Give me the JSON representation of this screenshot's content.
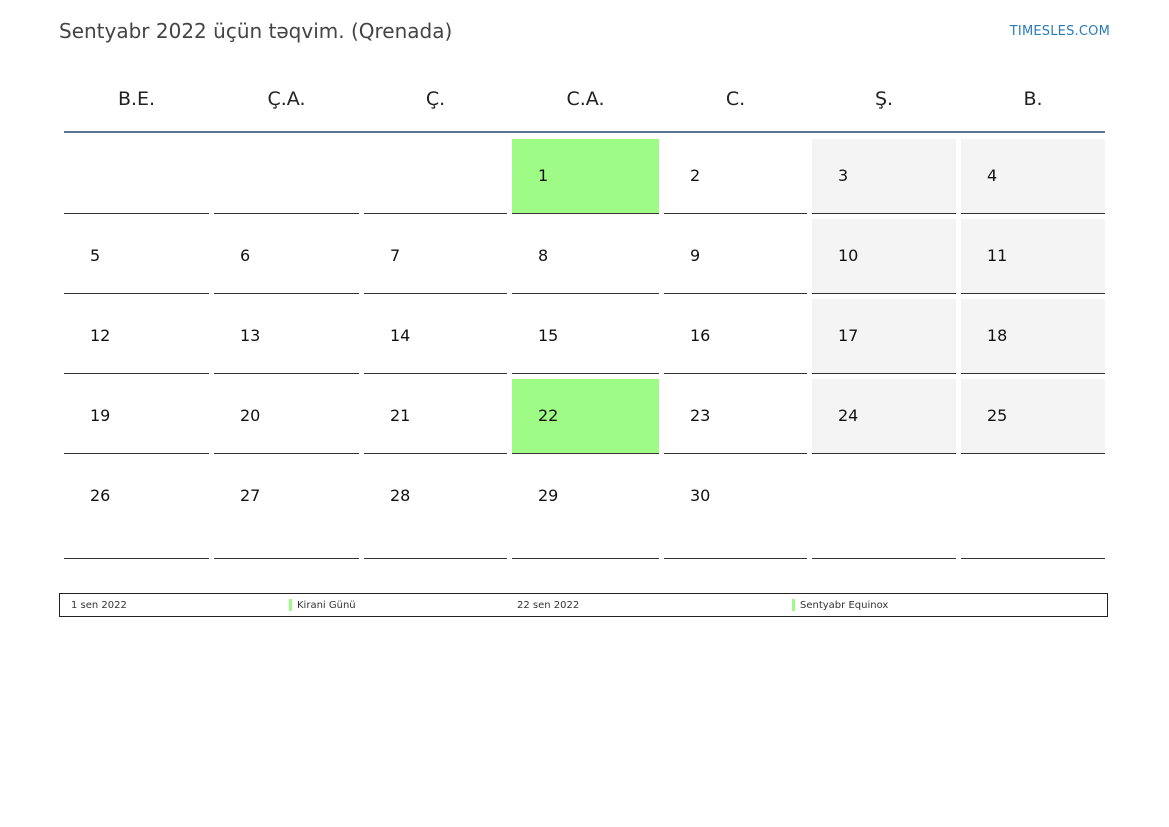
{
  "header": {
    "title": "Sentyabr 2022 üçün təqvim. (Qrenada)",
    "brand": "TIMESLES.COM"
  },
  "weekdays": [
    "B.E.",
    "Ç.A.",
    "Ç.",
    "C.A.",
    "C.",
    "Ş.",
    "B."
  ],
  "weeks": [
    [
      "",
      "",
      "",
      "1",
      "2",
      "3",
      "4"
    ],
    [
      "5",
      "6",
      "7",
      "8",
      "9",
      "10",
      "11"
    ],
    [
      "12",
      "13",
      "14",
      "15",
      "16",
      "17",
      "18"
    ],
    [
      "19",
      "20",
      "21",
      "22",
      "23",
      "24",
      "25"
    ],
    [
      "26",
      "27",
      "28",
      "29",
      "30",
      "",
      ""
    ]
  ],
  "highlighted_days": [
    "1",
    "22"
  ],
  "colors": {
    "holiday": "#9efc86",
    "weekend": "#f4f4f4",
    "header_rule": "#5a7595",
    "brand": "#2b7bb9"
  },
  "legend": [
    {
      "date": "1 sen 2022",
      "name": "Kirani Günü"
    },
    {
      "date": "22 sen 2022",
      "name": "Sentyabr Equinox"
    }
  ]
}
